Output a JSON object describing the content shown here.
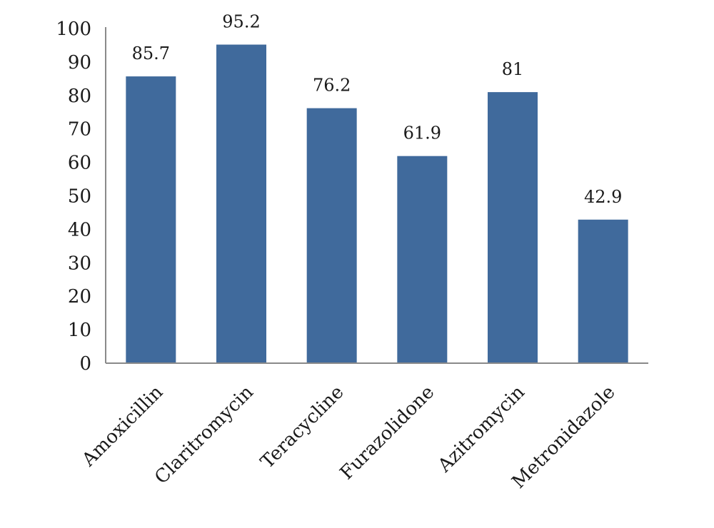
{
  "chart_data": {
    "type": "bar",
    "categories": [
      "Amoxicillin",
      "Claritromycin",
      "Teracycline",
      "Furazolidone",
      "Azitromycin",
      "Metronidazole"
    ],
    "values": [
      85.7,
      95.2,
      76.2,
      61.9,
      81,
      42.9
    ],
    "data_labels": [
      "85.7",
      "95.2",
      "76.2",
      "61.9",
      "81",
      "42.9"
    ],
    "y_ticks": [
      "0",
      "10",
      "20",
      "30",
      "40",
      "50",
      "60",
      "70",
      "80",
      "90",
      "100"
    ],
    "ylim": [
      0,
      100
    ],
    "title": "",
    "xlabel": "",
    "ylabel": "",
    "grid": false,
    "legend": "none",
    "bar_color": "#406a9c"
  }
}
